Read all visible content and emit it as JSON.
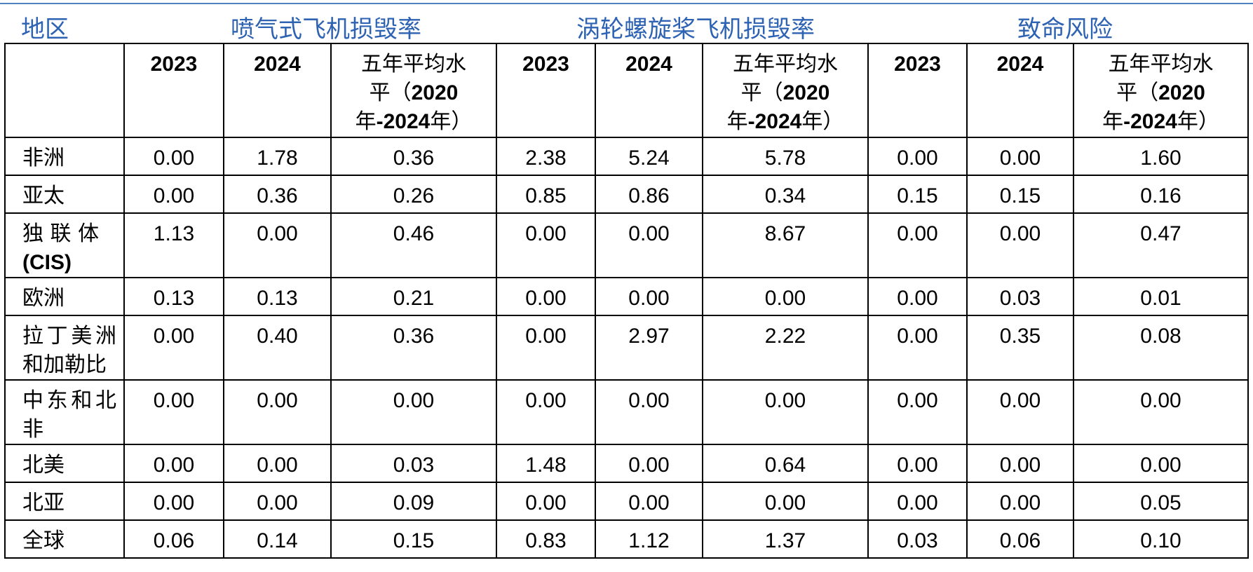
{
  "group_headers": {
    "region": "地区",
    "jet": "喷气式飞机损毁率",
    "turboprop": "涡轮螺旋桨飞机损毁率",
    "fatality": "致命风险"
  },
  "column_headers": {
    "y2023": "2023",
    "y2024": "2024",
    "avg_part1": "五年平均水",
    "avg_part2": "平（",
    "avg_part3": "2020",
    "avg_part4": "年",
    "avg_part5": "-2024",
    "avg_part6": "年）"
  },
  "rows": [
    {
      "region": "非洲",
      "region_extra": "",
      "jet": [
        "0.00",
        "1.78",
        "0.36"
      ],
      "turbo": [
        "2.38",
        "5.24",
        "5.78"
      ],
      "fatal": [
        "0.00",
        "0.00",
        "1.60"
      ]
    },
    {
      "region": "亚太",
      "region_extra": "",
      "jet": [
        "0.00",
        "0.36",
        "0.26"
      ],
      "turbo": [
        "0.85",
        "0.86",
        "0.34"
      ],
      "fatal": [
        "0.15",
        "0.15",
        "0.16"
      ]
    },
    {
      "region": "独 联 体",
      "region_extra": "(CIS)",
      "jet": [
        "1.13",
        "0.00",
        "0.46"
      ],
      "turbo": [
        "0.00",
        "0.00",
        "8.67"
      ],
      "fatal": [
        "0.00",
        "0.00",
        "0.47"
      ]
    },
    {
      "region": "欧洲",
      "region_extra": "",
      "jet": [
        "0.13",
        "0.13",
        "0.21"
      ],
      "turbo": [
        "0.00",
        "0.00",
        "0.00"
      ],
      "fatal": [
        "0.00",
        "0.03",
        "0.01"
      ]
    },
    {
      "region": "拉丁美洲和加勒比",
      "region_extra": "",
      "jet": [
        "0.00",
        "0.40",
        "0.36"
      ],
      "turbo": [
        "0.00",
        "2.97",
        "2.22"
      ],
      "fatal": [
        "0.00",
        "0.35",
        "0.08"
      ]
    },
    {
      "region": "中东和北非",
      "region_extra": "",
      "jet": [
        "0.00",
        "0.00",
        "0.00"
      ],
      "turbo": [
        "0.00",
        "0.00",
        "0.00"
      ],
      "fatal": [
        "0.00",
        "0.00",
        "0.00"
      ]
    },
    {
      "region": "北美",
      "region_extra": "",
      "jet": [
        "0.00",
        "0.00",
        "0.03"
      ],
      "turbo": [
        "1.48",
        "0.00",
        "0.64"
      ],
      "fatal": [
        "0.00",
        "0.00",
        "0.00"
      ]
    },
    {
      "region": "北亚",
      "region_extra": "",
      "jet": [
        "0.00",
        "0.00",
        "0.09"
      ],
      "turbo": [
        "0.00",
        "0.00",
        "0.00"
      ],
      "fatal": [
        "0.00",
        "0.00",
        "0.05"
      ]
    },
    {
      "region": "全球",
      "region_extra": "",
      "jet": [
        "0.06",
        "0.14",
        "0.15"
      ],
      "turbo": [
        "0.83",
        "1.12",
        "1.37"
      ],
      "fatal": [
        "0.03",
        "0.06",
        "0.10"
      ]
    }
  ]
}
